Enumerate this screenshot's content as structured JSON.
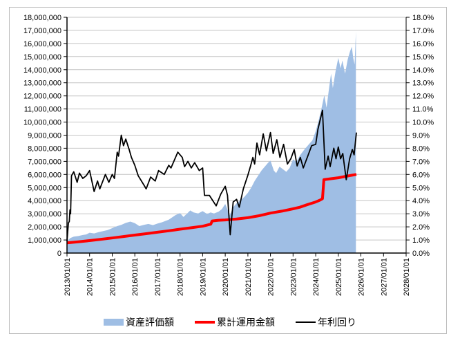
{
  "chart_data": {
    "type": "combo",
    "title": "",
    "gridline_color": "#c4c4c4",
    "axis_color": "#000000",
    "frame_border_color": "#bdbdbd",
    "x_axis": {
      "start_year": 2013,
      "end_year": 2028,
      "labels": [
        "2013/01/01",
        "2014/01/01",
        "2015/01/01",
        "2016/01/01",
        "2017/01/01",
        "2018/01/01",
        "2019/01/01",
        "2020/01/01",
        "2021/01/01",
        "2022/01/01",
        "2023/01/01",
        "2024/01/01",
        "2025/01/01",
        "2026/01/01",
        "2027/01/01",
        "2028/01/01"
      ]
    },
    "y_axis_left": {
      "min": 0,
      "max": 18000000,
      "step": 1000000,
      "labels": [
        "0",
        "1,000,000",
        "2,000,000",
        "3,000,000",
        "4,000,000",
        "5,000,000",
        "6,000,000",
        "7,000,000",
        "8,000,000",
        "9,000,000",
        "10,000,000",
        "11,000,000",
        "12,000,000",
        "13,000,000",
        "14,000,000",
        "15,000,000",
        "16,000,000",
        "17,000,000",
        "18,000,000"
      ]
    },
    "y_axis_right": {
      "min": 0,
      "max": 18,
      "step": 1,
      "labels": [
        "0.0%",
        "1.0%",
        "2.0%",
        "3.0%",
        "4.0%",
        "5.0%",
        "6.0%",
        "7.0%",
        "8.0%",
        "9.0%",
        "10.0%",
        "11.0%",
        "12.0%",
        "13.0%",
        "14.0%",
        "15.0%",
        "16.0%",
        "17.0%",
        "18.0%"
      ]
    },
    "series": [
      {
        "name": "資産評価額",
        "type": "area",
        "axis": "left",
        "color": "#9fbee4",
        "points": [
          [
            2013.0,
            900000
          ],
          [
            2013.15,
            1150000
          ],
          [
            2013.3,
            1250000
          ],
          [
            2013.5,
            1300000
          ],
          [
            2013.7,
            1380000
          ],
          [
            2013.85,
            1420000
          ],
          [
            2014.0,
            1550000
          ],
          [
            2014.2,
            1500000
          ],
          [
            2014.4,
            1600000
          ],
          [
            2014.6,
            1680000
          ],
          [
            2014.8,
            1750000
          ],
          [
            2015.0,
            1900000
          ],
          [
            2015.2,
            2050000
          ],
          [
            2015.4,
            2150000
          ],
          [
            2015.6,
            2300000
          ],
          [
            2015.8,
            2400000
          ],
          [
            2016.0,
            2280000
          ],
          [
            2016.2,
            2060000
          ],
          [
            2016.4,
            2150000
          ],
          [
            2016.6,
            2220000
          ],
          [
            2016.8,
            2130000
          ],
          [
            2017.0,
            2250000
          ],
          [
            2017.2,
            2350000
          ],
          [
            2017.5,
            2550000
          ],
          [
            2017.8,
            2900000
          ],
          [
            2018.0,
            3050000
          ],
          [
            2018.15,
            2760000
          ],
          [
            2018.3,
            3000000
          ],
          [
            2018.45,
            3250000
          ],
          [
            2018.6,
            3100000
          ],
          [
            2018.8,
            3020000
          ],
          [
            2019.0,
            3200000
          ],
          [
            2019.2,
            2980000
          ],
          [
            2019.35,
            3100000
          ],
          [
            2019.5,
            3020000
          ],
          [
            2019.7,
            3150000
          ],
          [
            2019.85,
            3350000
          ],
          [
            2020.0,
            3750000
          ],
          [
            2020.2,
            2900000
          ],
          [
            2020.35,
            3500000
          ],
          [
            2020.5,
            3800000
          ],
          [
            2020.7,
            4050000
          ],
          [
            2020.85,
            4300000
          ],
          [
            2021.0,
            4600000
          ],
          [
            2021.15,
            5000000
          ],
          [
            2021.3,
            5500000
          ],
          [
            2021.45,
            5900000
          ],
          [
            2021.6,
            6300000
          ],
          [
            2021.75,
            6600000
          ],
          [
            2021.9,
            6900000
          ],
          [
            2022.0,
            7050000
          ],
          [
            2022.15,
            6300000
          ],
          [
            2022.25,
            6100000
          ],
          [
            2022.4,
            6600000
          ],
          [
            2022.55,
            6400000
          ],
          [
            2022.7,
            6200000
          ],
          [
            2022.85,
            6500000
          ],
          [
            2023.0,
            7150000
          ],
          [
            2023.15,
            6950000
          ],
          [
            2023.3,
            7450000
          ],
          [
            2023.5,
            7900000
          ],
          [
            2023.7,
            8300000
          ],
          [
            2023.85,
            8600000
          ],
          [
            2024.0,
            9300000
          ],
          [
            2024.1,
            9900000
          ],
          [
            2024.25,
            11000000
          ],
          [
            2024.38,
            12050000
          ],
          [
            2024.48,
            11100000
          ],
          [
            2024.6,
            12700000
          ],
          [
            2024.68,
            13700000
          ],
          [
            2024.76,
            12600000
          ],
          [
            2024.88,
            13900000
          ],
          [
            2025.0,
            14900000
          ],
          [
            2025.1,
            14100000
          ],
          [
            2025.18,
            14700000
          ],
          [
            2025.3,
            13700000
          ],
          [
            2025.42,
            14800000
          ],
          [
            2025.52,
            15400000
          ],
          [
            2025.6,
            15750000
          ],
          [
            2025.66,
            14900000
          ],
          [
            2025.72,
            14400000
          ],
          [
            2025.78,
            16900000
          ]
        ]
      },
      {
        "name": "累計運用金額",
        "type": "line",
        "axis": "left",
        "color": "#ff0000",
        "stroke_width": 4,
        "points": [
          [
            2013.0,
            780000
          ],
          [
            2013.5,
            860000
          ],
          [
            2014.0,
            950000
          ],
          [
            2014.5,
            1050000
          ],
          [
            2015.0,
            1150000
          ],
          [
            2015.5,
            1260000
          ],
          [
            2016.0,
            1370000
          ],
          [
            2016.5,
            1480000
          ],
          [
            2017.0,
            1590000
          ],
          [
            2017.5,
            1700000
          ],
          [
            2018.0,
            1820000
          ],
          [
            2018.5,
            1930000
          ],
          [
            2019.0,
            2050000
          ],
          [
            2019.3,
            2180000
          ],
          [
            2019.36,
            2200000
          ],
          [
            2019.42,
            2450000
          ],
          [
            2019.7,
            2500000
          ],
          [
            2020.0,
            2530000
          ],
          [
            2020.5,
            2600000
          ],
          [
            2021.0,
            2700000
          ],
          [
            2021.5,
            2850000
          ],
          [
            2022.0,
            3050000
          ],
          [
            2022.5,
            3200000
          ],
          [
            2023.0,
            3380000
          ],
          [
            2023.3,
            3500000
          ],
          [
            2023.6,
            3680000
          ],
          [
            2024.0,
            3900000
          ],
          [
            2024.2,
            4050000
          ],
          [
            2024.3,
            4150000
          ],
          [
            2024.36,
            5600000
          ],
          [
            2024.7,
            5680000
          ],
          [
            2025.0,
            5750000
          ],
          [
            2025.4,
            5880000
          ],
          [
            2025.8,
            6000000
          ]
        ]
      },
      {
        "name": "年利回り",
        "type": "line",
        "axis": "right",
        "color": "#000000",
        "stroke_width": 1.8,
        "points": [
          [
            2013.0,
            0.9
          ],
          [
            2013.06,
            2.3
          ],
          [
            2013.1,
            2.4
          ],
          [
            2013.13,
            3.3
          ],
          [
            2013.16,
            3.0
          ],
          [
            2013.2,
            5.9
          ],
          [
            2013.3,
            6.2
          ],
          [
            2013.45,
            5.4
          ],
          [
            2013.55,
            6.1
          ],
          [
            2013.7,
            5.7
          ],
          [
            2013.85,
            5.9
          ],
          [
            2014.0,
            6.3
          ],
          [
            2014.2,
            4.7
          ],
          [
            2014.35,
            5.5
          ],
          [
            2014.45,
            4.9
          ],
          [
            2014.7,
            6.0
          ],
          [
            2014.85,
            5.4
          ],
          [
            2015.0,
            6.0
          ],
          [
            2015.1,
            5.7
          ],
          [
            2015.22,
            7.7
          ],
          [
            2015.28,
            7.4
          ],
          [
            2015.4,
            9.0
          ],
          [
            2015.5,
            8.2
          ],
          [
            2015.6,
            8.7
          ],
          [
            2015.75,
            7.9
          ],
          [
            2015.85,
            7.3
          ],
          [
            2016.0,
            6.7
          ],
          [
            2016.15,
            5.9
          ],
          [
            2016.4,
            5.2
          ],
          [
            2016.5,
            4.9
          ],
          [
            2016.7,
            5.8
          ],
          [
            2016.9,
            5.5
          ],
          [
            2017.05,
            6.3
          ],
          [
            2017.3,
            6.0
          ],
          [
            2017.5,
            6.7
          ],
          [
            2017.6,
            6.5
          ],
          [
            2017.9,
            7.7
          ],
          [
            2018.1,
            7.3
          ],
          [
            2018.2,
            6.6
          ],
          [
            2018.35,
            7.0
          ],
          [
            2018.5,
            6.5
          ],
          [
            2018.65,
            6.9
          ],
          [
            2018.85,
            6.3
          ],
          [
            2019.0,
            6.5
          ],
          [
            2019.08,
            4.4
          ],
          [
            2019.3,
            4.4
          ],
          [
            2019.45,
            4.0
          ],
          [
            2019.6,
            3.6
          ],
          [
            2019.8,
            4.5
          ],
          [
            2020.0,
            5.1
          ],
          [
            2020.1,
            4.4
          ],
          [
            2020.22,
            1.4
          ],
          [
            2020.35,
            3.9
          ],
          [
            2020.5,
            4.1
          ],
          [
            2020.62,
            3.5
          ],
          [
            2020.8,
            4.9
          ],
          [
            2021.0,
            5.95
          ],
          [
            2021.12,
            6.65
          ],
          [
            2021.22,
            7.3
          ],
          [
            2021.3,
            6.8
          ],
          [
            2021.4,
            8.4
          ],
          [
            2021.52,
            7.5
          ],
          [
            2021.68,
            9.1
          ],
          [
            2021.82,
            7.8
          ],
          [
            2022.0,
            9.2
          ],
          [
            2022.12,
            7.6
          ],
          [
            2022.28,
            8.65
          ],
          [
            2022.42,
            7.3
          ],
          [
            2022.58,
            8.3
          ],
          [
            2022.75,
            6.8
          ],
          [
            2022.9,
            7.2
          ],
          [
            2023.05,
            7.9
          ],
          [
            2023.18,
            6.65
          ],
          [
            2023.32,
            7.3
          ],
          [
            2023.45,
            6.5
          ],
          [
            2023.65,
            7.4
          ],
          [
            2023.82,
            8.2
          ],
          [
            2024.0,
            8.3
          ],
          [
            2024.1,
            9.45
          ],
          [
            2024.3,
            10.9
          ],
          [
            2024.42,
            6.4
          ],
          [
            2024.55,
            7.4
          ],
          [
            2024.64,
            6.6
          ],
          [
            2024.8,
            8.0
          ],
          [
            2024.9,
            7.2
          ],
          [
            2025.0,
            8.1
          ],
          [
            2025.1,
            7.2
          ],
          [
            2025.2,
            7.6
          ],
          [
            2025.35,
            5.6
          ],
          [
            2025.5,
            7.2
          ],
          [
            2025.62,
            7.9
          ],
          [
            2025.7,
            7.5
          ],
          [
            2025.8,
            9.2
          ]
        ]
      }
    ],
    "legend_position": "bottom"
  }
}
